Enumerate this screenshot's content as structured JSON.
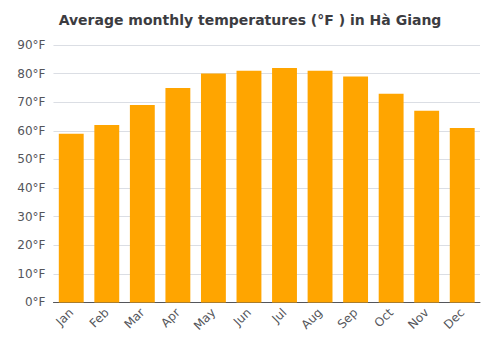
{
  "chart_data": {
    "type": "bar",
    "title": "Average monthly temperatures (°F ) in Hà Giang",
    "categories": [
      "Jan",
      "Feb",
      "Mar",
      "Apr",
      "May",
      "Jun",
      "Jul",
      "Aug",
      "Sep",
      "Oct",
      "Nov",
      "Dec"
    ],
    "values": [
      59,
      62,
      69,
      75,
      80,
      81,
      82,
      81,
      79,
      73,
      67,
      61
    ],
    "color": "#FFA500",
    "ylim": [
      0,
      90
    ],
    "yticks": [
      {
        "value": 0,
        "label": "0°F"
      },
      {
        "value": 10,
        "label": "10°F"
      },
      {
        "value": 20,
        "label": "20°F"
      },
      {
        "value": 30,
        "label": "30°F"
      },
      {
        "value": 40,
        "label": "40°F"
      },
      {
        "value": 50,
        "label": "50°F"
      },
      {
        "value": 60,
        "label": "60°F"
      },
      {
        "value": 70,
        "label": "70°F"
      },
      {
        "value": 80,
        "label": "80°F"
      },
      {
        "value": 90,
        "label": "90°F"
      }
    ],
    "grid": true
  }
}
